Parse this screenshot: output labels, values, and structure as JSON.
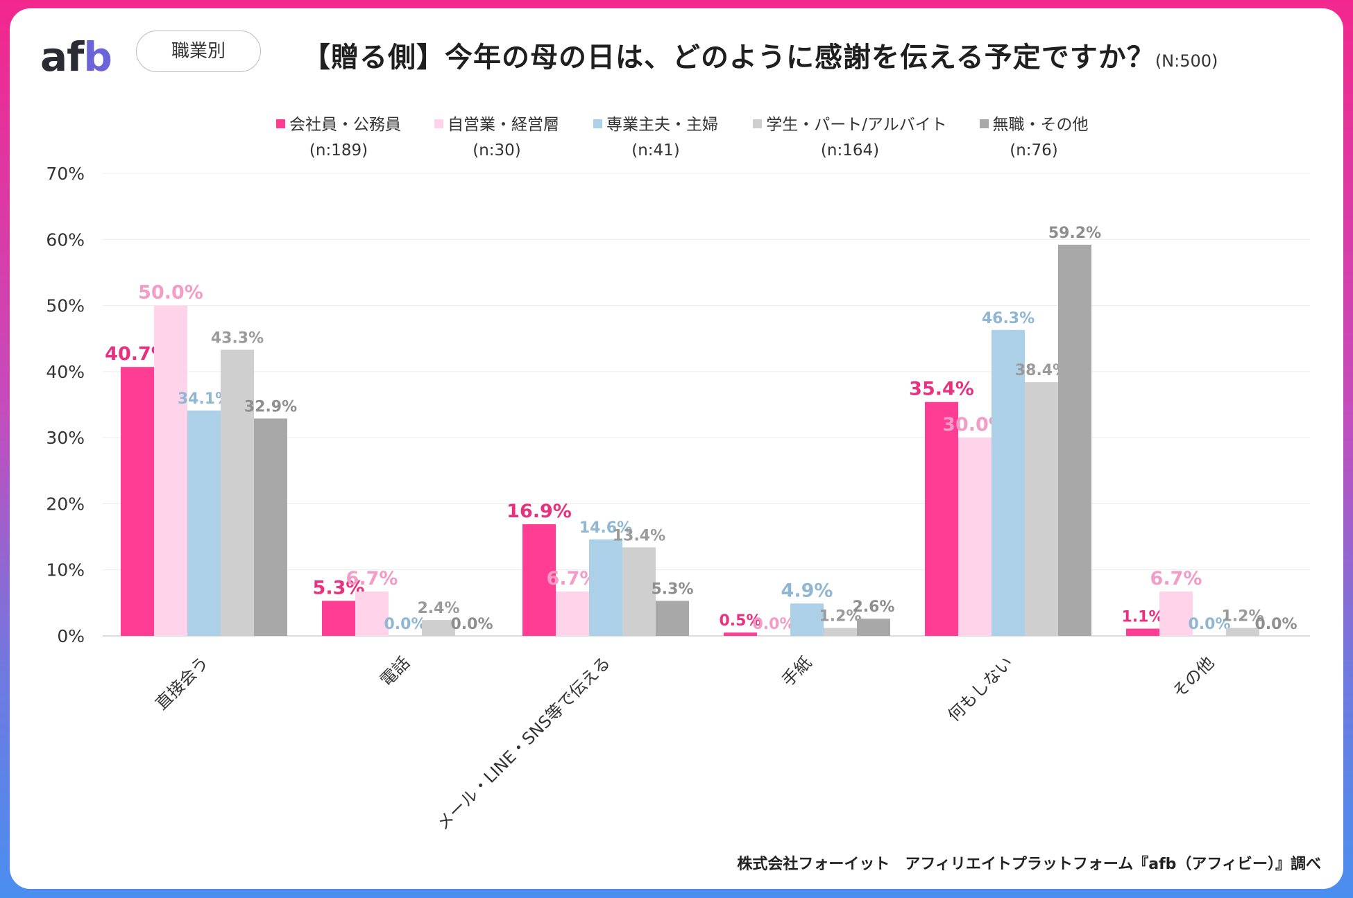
{
  "header": {
    "logo": {
      "a": "a",
      "f": "f",
      "b": "b"
    },
    "badge": "職業別",
    "title": "【贈る側】今年の母の日は、どのように感謝を伝える予定ですか？",
    "sample": "(N:500)"
  },
  "colors": {
    "frame_top": "#f2278d",
    "frame_bottom": "#4a8ff0",
    "grid": "#ececec",
    "axis": "#d0d0d0"
  },
  "legend": [
    {
      "label": "会社員・公務員",
      "n": "(n:189)",
      "color": "#ff3d95"
    },
    {
      "label": "自営業・経営層",
      "n": "(n:30)",
      "color": "#ffd3ea"
    },
    {
      "label": "専業主夫・主婦",
      "n": "(n:41)",
      "color": "#abd0e8"
    },
    {
      "label": "学生・パート/アルバイト",
      "n": "(n:164)",
      "color": "#cfcfcf"
    },
    {
      "label": "無職・その他",
      "n": "(n:76)",
      "color": "#a8a8a8"
    }
  ],
  "chart_data": {
    "type": "bar",
    "title": "【贈る側】今年の母の日は、どのように感謝を伝える予定ですか？",
    "xlabel": "",
    "ylabel": "",
    "ylim": [
      0,
      70
    ],
    "yticks": [
      "0%",
      "10%",
      "20%",
      "30%",
      "40%",
      "50%",
      "60%",
      "70%"
    ],
    "categories": [
      "直接会う",
      "電話",
      "メール・LINE・SNS等で伝える",
      "手紙",
      "何もしない",
      "その他"
    ],
    "series": [
      {
        "name": "会社員・公務員",
        "color": "#ff3d95",
        "label_color": "#e8327f",
        "values": [
          40.7,
          5.3,
          16.9,
          0.5,
          35.4,
          1.1
        ],
        "labels": [
          "40.7%",
          "5.3%",
          "16.9%",
          "0.5%",
          "35.4%",
          "1.1%"
        ]
      },
      {
        "name": "自営業・経営層",
        "color": "#ffd3ea",
        "label_color": "#f29cc6",
        "values": [
          50.0,
          6.7,
          6.7,
          0.0,
          30.0,
          6.7
        ],
        "labels": [
          "50.0%",
          "6.7%",
          "6.7%",
          "0.0%",
          "30.0%",
          "6.7%"
        ]
      },
      {
        "name": "専業主夫・主婦",
        "color": "#abd0e8",
        "label_color": "#8fb7d3",
        "values": [
          34.1,
          0.0,
          14.6,
          4.9,
          46.3,
          0.0
        ],
        "labels": [
          "34.1%",
          "0.0%",
          "14.6%",
          "4.9%",
          "46.3%",
          "0.0%"
        ]
      },
      {
        "name": "学生・パート/アルバイト",
        "color": "#cfcfcf",
        "label_color": "#9a9a9a",
        "values": [
          43.3,
          2.4,
          13.4,
          1.2,
          38.4,
          1.2
        ],
        "labels": [
          "43.3%",
          "2.4%",
          "13.4%",
          "1.2%",
          "38.4%",
          "1.2%"
        ]
      },
      {
        "name": "無職・その他",
        "color": "#a8a8a8",
        "label_color": "#8e8e8e",
        "values": [
          32.9,
          0.0,
          5.3,
          2.6,
          59.2,
          0.0
        ],
        "labels": [
          "32.9%",
          "0.0%",
          "5.3%",
          "2.6%",
          "59.2%",
          "0.0%"
        ]
      }
    ],
    "grid": true,
    "legend_position": "top"
  },
  "footer": {
    "source": "株式会社フォーイット　アフィリエイトプラットフォーム『afb（アフィビー）』調べ"
  }
}
